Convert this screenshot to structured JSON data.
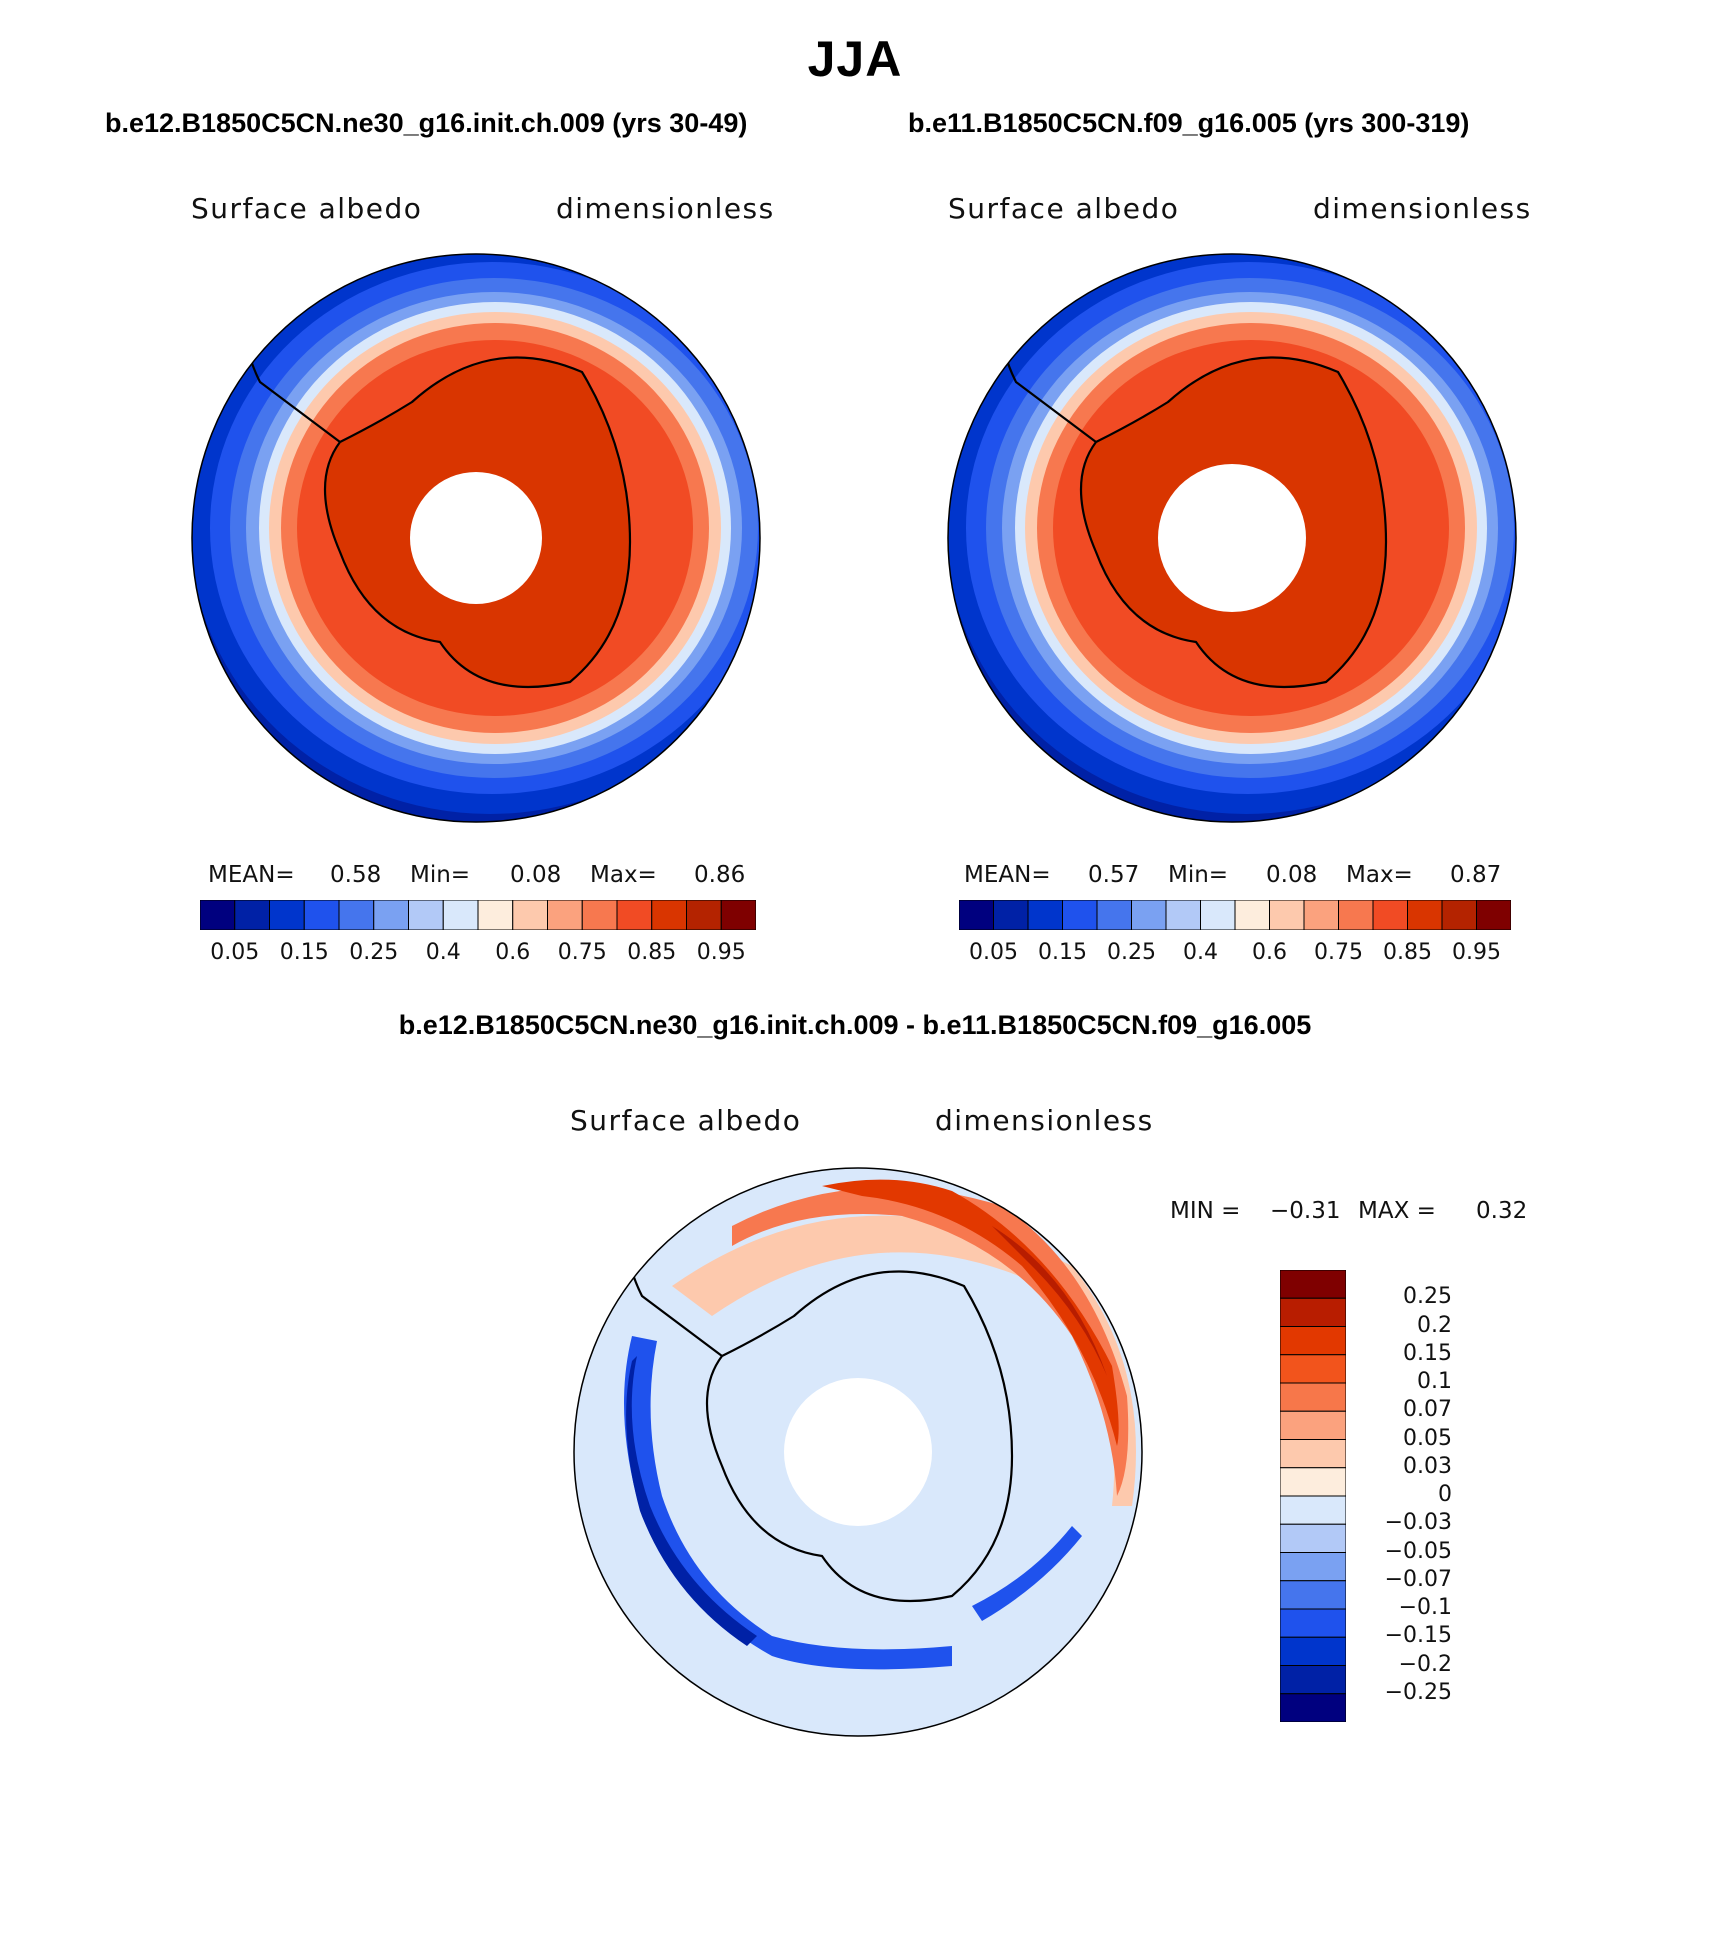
{
  "title": "JJA",
  "case_a": {
    "title": "b.e12.B1850C5CN.ne30_g16.init.ch.009 (yrs 30-49)",
    "variable": "Surface albedo",
    "units": "dimensionless",
    "mean_label": "MEAN=",
    "mean_value": "0.58",
    "min_label": "Min=",
    "min_value": "0.08",
    "max_label": "Max=",
    "max_value": "0.86"
  },
  "case_b": {
    "title": "b.e11.B1850C5CN.f09_g16.005 (yrs 300-319)",
    "variable": "Surface albedo",
    "units": "dimensionless",
    "mean_label": "MEAN=",
    "mean_value": "0.57",
    "min_label": "Min=",
    "min_value": "0.08",
    "max_label": "Max=",
    "max_value": "0.87"
  },
  "difference": {
    "title": "b.e12.B1850C5CN.ne30_g16.init.ch.009 - b.e11.B1850C5CN.f09_g16.005",
    "variable": "Surface albedo",
    "units": "dimensionless",
    "min_label": "MIN =",
    "min_value": "−0.31",
    "max_label": "MAX =",
    "max_value": "0.32"
  },
  "colors": {
    "abs_scale": [
      "#00007f",
      "#0021a6",
      "#0035cc",
      "#1f52ed",
      "#4575ed",
      "#7aa1f2",
      "#b2c9f7",
      "#d9e8fb",
      "#fdeddd",
      "#fdc9ad",
      "#fba27e",
      "#f7784f",
      "#f14b24",
      "#d93500",
      "#b42300",
      "#7f0000"
    ],
    "diff_scale": [
      "#7f0000",
      "#b81d00",
      "#e23800",
      "#f2541c",
      "#f7774a",
      "#fba27e",
      "#fdc9ad",
      "#fdeddd",
      "#d9e8fb",
      "#b2c9f7",
      "#7aa1f2",
      "#4575ed",
      "#1f52ed",
      "#0035cc",
      "#0021a6",
      "#00007f"
    ]
  },
  "chart_data": [
    {
      "type": "heatmap",
      "projection": "south polar stereographic",
      "title": "b.e12.B1850C5CN.ne30_g16.init.ch.009 (yrs 30-49)",
      "variable": "Surface albedo",
      "units": "dimensionless",
      "mean": 0.58,
      "min": 0.08,
      "max": 0.86,
      "levels": [
        0.05,
        0.1,
        0.15,
        0.2,
        0.25,
        0.3,
        0.35,
        0.4,
        0.5,
        0.6,
        0.7,
        0.75,
        0.8,
        0.85,
        0.9,
        0.95
      ],
      "colorbar_labels": [
        "0.05",
        "0.15",
        "0.25",
        "0.4",
        "0.6",
        "0.75",
        "0.85",
        "0.95"
      ]
    },
    {
      "type": "heatmap",
      "projection": "south polar stereographic",
      "title": "b.e11.B1850C5CN.f09_g16.005 (yrs 300-319)",
      "variable": "Surface albedo",
      "units": "dimensionless",
      "mean": 0.57,
      "min": 0.08,
      "max": 0.87,
      "levels": [
        0.05,
        0.1,
        0.15,
        0.2,
        0.25,
        0.3,
        0.35,
        0.4,
        0.5,
        0.6,
        0.7,
        0.75,
        0.8,
        0.85,
        0.9,
        0.95
      ],
      "colorbar_labels": [
        "0.05",
        "0.15",
        "0.25",
        "0.4",
        "0.6",
        "0.75",
        "0.85",
        "0.95"
      ]
    },
    {
      "type": "heatmap",
      "projection": "south polar stereographic",
      "title": "b.e12.B1850C5CN.ne30_g16.init.ch.009 - b.e11.B1850C5CN.f09_g16.005",
      "variable": "Surface albedo",
      "units": "dimensionless",
      "min": -0.31,
      "max": 0.32,
      "colorbar_labels": [
        "0.25",
        "0.2",
        "0.15",
        "0.1",
        "0.07",
        "0.05",
        "0.03",
        "0",
        "−0.03",
        "−0.05",
        "−0.07",
        "−0.1",
        "−0.15",
        "−0.2",
        "−0.25"
      ]
    }
  ]
}
